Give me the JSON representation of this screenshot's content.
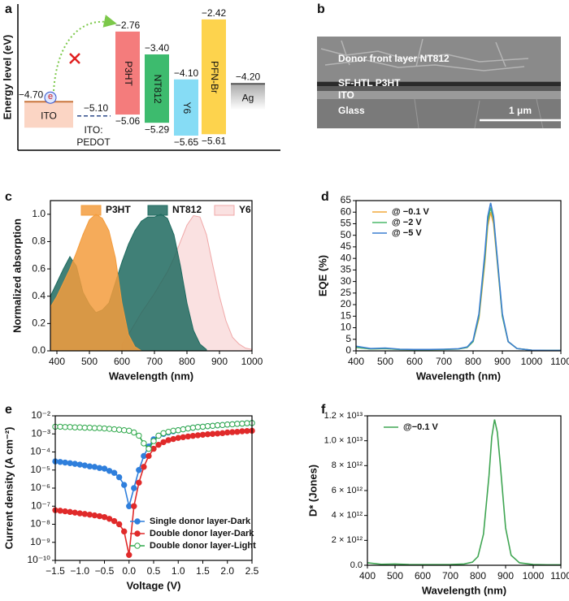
{
  "panel_labels": [
    "a",
    "b",
    "c",
    "d",
    "e",
    "f"
  ],
  "energy_diagram": {
    "y_label": "Energy level (eV)",
    "electron_label": "e",
    "pedot": {
      "lines": [
        "ITO:",
        "PEDOT"
      ],
      "level": {
        "value": -5.1,
        "label": "−5.10"
      }
    },
    "layers": [
      {
        "name": "ITO",
        "color": "#fbd5c4",
        "top": {
          "value": -4.7,
          "label": "−4.70"
        }
      },
      {
        "name": "P3HT",
        "color": "#f47c7c",
        "top": {
          "value": -2.76,
          "label": "−2.76"
        },
        "bottom": {
          "value": -5.06,
          "label": "−5.06"
        }
      },
      {
        "name": "NT812",
        "color": "#3dbb6e",
        "top": {
          "value": -3.4,
          "label": "−3.40"
        },
        "bottom": {
          "value": -5.29,
          "label": "−5.29"
        }
      },
      {
        "name": "Y6",
        "color": "#86dcf5",
        "top": {
          "value": -4.1,
          "label": "−4.10"
        },
        "bottom": {
          "value": -5.65,
          "label": "−5.65"
        }
      },
      {
        "name": "PFN-Br",
        "color": "#fdd34d",
        "top": {
          "value": -2.42,
          "label": "−2.42"
        },
        "bottom": {
          "value": -5.61,
          "label": "−5.61"
        }
      },
      {
        "name": "Ag",
        "color": "#bdbdbd",
        "top": {
          "value": -4.2,
          "label": "−4.20"
        }
      }
    ]
  },
  "sem_image": {
    "labels": [
      "Donor front layer NT812",
      "SF-HTL P3HT",
      "ITO",
      "Glass"
    ],
    "scale_bar": "1 μm"
  },
  "chart_data": [
    {
      "type": "area",
      "x_label": "Wavelength (nm)",
      "y_label": "Normalized absorption",
      "legend": "top",
      "x": [
        380,
        400,
        420,
        440,
        460,
        480,
        500,
        520,
        540,
        560,
        580,
        600,
        620,
        640,
        660,
        680,
        700,
        720,
        740,
        760,
        780,
        800,
        820,
        840,
        860,
        880,
        900,
        920,
        940,
        960,
        980,
        1000
      ],
      "xlim": [
        380,
        1000
      ],
      "xticks": [
        400,
        500,
        600,
        700,
        800,
        900,
        1000
      ],
      "ylim": [
        0,
        1.1
      ],
      "yticks": [
        {
          "value": 0,
          "label": "0.0"
        },
        0.2,
        0.4,
        0.6,
        0.8,
        {
          "value": 1,
          "label": "1.0"
        }
      ],
      "series": [
        {
          "name": "P3HT",
          "color": "#f39c3d",
          "values": [
            0.32,
            0.4,
            0.5,
            0.6,
            0.72,
            0.85,
            0.96,
            1.0,
            0.97,
            0.88,
            0.68,
            0.35,
            0.12,
            0.03,
            0,
            null,
            null,
            null,
            null,
            null,
            null,
            null,
            null,
            null,
            null,
            null,
            null,
            null,
            null,
            null,
            null,
            null
          ]
        },
        {
          "name": "NT812",
          "color": "#1e6a5f",
          "values": [
            0.4,
            0.5,
            0.6,
            0.69,
            0.62,
            0.43,
            0.34,
            0.28,
            0.3,
            0.35,
            0.5,
            0.65,
            0.78,
            0.88,
            0.95,
            0.98,
            0.98,
            1.0,
            0.97,
            0.85,
            0.62,
            0.35,
            0.15,
            0.05,
            0.01,
            null,
            null,
            null,
            null,
            null,
            null,
            null
          ]
        },
        {
          "name": "Y6",
          "color": "#f0a8a8",
          "values": [
            null,
            null,
            null,
            null,
            null,
            null,
            null,
            null,
            null,
            null,
            null,
            0.05,
            0.12,
            0.2,
            0.28,
            0.35,
            0.42,
            0.5,
            0.58,
            0.68,
            0.8,
            0.92,
            0.99,
            0.98,
            0.85,
            0.62,
            0.4,
            0.22,
            0.1,
            0.05,
            0.02,
            0.01
          ]
        }
      ]
    },
    {
      "type": "line",
      "x_label": "Wavelength (nm)",
      "y_label": "EQE (%)",
      "legend": "upper left",
      "x": [
        400,
        450,
        500,
        550,
        600,
        650,
        700,
        750,
        780,
        800,
        820,
        840,
        850,
        860,
        870,
        880,
        900,
        920,
        950,
        1000,
        1050,
        1100
      ],
      "xlim": [
        400,
        1100
      ],
      "xticks": [
        400,
        500,
        600,
        700,
        800,
        900,
        1000,
        1100
      ],
      "ylim": [
        0,
        65
      ],
      "yticks": [
        0,
        5,
        10,
        15,
        20,
        25,
        30,
        35,
        40,
        45,
        50,
        55,
        60,
        65
      ],
      "series": [
        {
          "name": "@ −0.1 V",
          "color": "#f2a93b",
          "values": [
            1.5,
            0.8,
            1,
            0.6,
            0.5,
            0.5,
            0.6,
            0.8,
            1.5,
            4,
            14,
            38,
            54,
            60,
            55,
            42,
            15,
            4,
            1,
            0.3,
            0.2,
            0.2
          ]
        },
        {
          "name": "@ −2 V",
          "color": "#4cb86a",
          "values": [
            1.5,
            0.8,
            1,
            0.6,
            0.5,
            0.5,
            0.6,
            0.8,
            1.5,
            4,
            15,
            40,
            56,
            62,
            57,
            43,
            15,
            4,
            1,
            0.3,
            0.2,
            0.2
          ]
        },
        {
          "name": "@ −5 V",
          "color": "#3b7fd0",
          "values": [
            2,
            1,
            1.2,
            0.7,
            0.6,
            0.6,
            0.7,
            0.9,
            1.7,
            4.5,
            16,
            42,
            58,
            64,
            58,
            44,
            16,
            4,
            1,
            0.3,
            0.2,
            0.2
          ]
        }
      ]
    },
    {
      "type": "line",
      "x_label": "Voltage (V)",
      "y_label": "Current density (A cm⁻²)",
      "legend": "lower left",
      "log_y": true,
      "x": [
        -1.5,
        -1.4,
        -1.3,
        -1.2,
        -1.1,
        -1,
        -0.9,
        -0.8,
        -0.7,
        -0.6,
        -0.5,
        -0.4,
        -0.3,
        -0.2,
        -0.1,
        0,
        0.1,
        0.2,
        0.3,
        0.4,
        0.5,
        0.6,
        0.7,
        0.8,
        0.9,
        1,
        1.1,
        1.2,
        1.3,
        1.4,
        1.5,
        1.6,
        1.7,
        1.8,
        1.9,
        2,
        2.1,
        2.2,
        2.3,
        2.4,
        2.5
      ],
      "xlim": [
        -1.5,
        2.5
      ],
      "xticks": [
        {
          "value": -1.5,
          "label": "−1.5"
        },
        {
          "value": -1,
          "label": "−1.0"
        },
        {
          "value": -0.5,
          "label": "−0.5"
        },
        {
          "value": 0,
          "label": "0.0"
        },
        0.5,
        {
          "value": 1,
          "label": "1.0"
        },
        1.5,
        {
          "value": 2,
          "label": "2.0"
        },
        2.5
      ],
      "ylim": [
        1e-10,
        0.01
      ],
      "yticks": [
        {
          "value": 0.01,
          "label": "10⁻²"
        },
        {
          "value": 0.001,
          "label": "10⁻³"
        },
        {
          "value": 0.0001,
          "label": "10⁻⁴"
        },
        {
          "value": 1e-05,
          "label": "10⁻⁵"
        },
        {
          "value": 1e-06,
          "label": "10⁻⁶"
        },
        {
          "value": 1e-07,
          "label": "10⁻⁷"
        },
        {
          "value": 1e-08,
          "label": "10⁻⁸"
        },
        {
          "value": 1e-09,
          "label": "10⁻⁹"
        },
        {
          "value": 1e-10,
          "label": "10⁻¹⁰"
        }
      ],
      "series": [
        {
          "name": "Single donor layer-Dark",
          "color": "#2f7fdc",
          "marker": "filled",
          "values": [
            3e-05,
            2.8e-05,
            2.6e-05,
            2.4e-05,
            2.2e-05,
            2e-05,
            1.8e-05,
            1.6e-05,
            1.5e-05,
            1.3e-05,
            1.2e-05,
            9e-06,
            7e-06,
            4e-06,
            1.5e-06,
            1e-07,
            1e-06,
            1e-05,
            6e-05,
            0.0002,
            0.0005,
            0.0008,
            0.001,
            0.0012,
            0.0014,
            0.0016,
            0.0018,
            0.002,
            0.0022,
            0.0024,
            0.0025,
            0.0027,
            0.0028,
            0.003,
            0.0031,
            0.0033,
            0.0034,
            0.0036,
            0.0037,
            0.0039,
            0.004
          ]
        },
        {
          "name": "Double donor layer-Dark",
          "color": "#e02a2a",
          "marker": "filled",
          "values": [
            6e-08,
            5.6e-08,
            5.2e-08,
            4.8e-08,
            4.4e-08,
            4e-08,
            3.7e-08,
            3.4e-08,
            3.1e-08,
            2.8e-08,
            2.5e-08,
            2e-08,
            1.5e-08,
            1e-08,
            4e-09,
            2e-10,
            1e-07,
            2e-06,
            1.5e-05,
            6e-05,
            0.00015,
            0.00025,
            0.00035,
            0.00045,
            0.00052,
            0.0006,
            0.00066,
            0.00072,
            0.00078,
            0.00084,
            0.0009,
            0.00096,
            0.001,
            0.00105,
            0.0011,
            0.0012,
            0.00125,
            0.0013,
            0.0014,
            0.00145,
            0.0015
          ]
        },
        {
          "name": "Double donor layer-Light",
          "color": "#2ea84a",
          "marker": "open",
          "values": [
            0.0025,
            0.0025,
            0.0024,
            0.0024,
            0.0023,
            0.0023,
            0.0022,
            0.0022,
            0.0021,
            0.0021,
            0.002,
            0.0019,
            0.0018,
            0.0017,
            0.0016,
            0.0015,
            0.0012,
            0.0008,
            0.0003,
            0.00015,
            0.0004,
            0.0008,
            0.0011,
            0.0013,
            0.0015,
            0.0016,
            0.0018,
            0.002,
            0.0022,
            0.0024,
            0.0025,
            0.0027,
            0.0028,
            0.003,
            0.0031,
            0.0033,
            0.0034,
            0.0036,
            0.0037,
            0.0039,
            0.004
          ]
        }
      ]
    },
    {
      "type": "line",
      "x_label": "Wavelength (nm)",
      "y_label": "D* (Jones)",
      "legend": "upper left",
      "x": [
        400,
        450,
        500,
        550,
        600,
        650,
        700,
        750,
        780,
        800,
        820,
        840,
        850,
        860,
        870,
        880,
        900,
        920,
        950,
        1000,
        1050,
        1100
      ],
      "xlim": [
        400,
        1100
      ],
      "xticks": [
        400,
        500,
        600,
        700,
        800,
        900,
        1000,
        1100
      ],
      "ylim": [
        0,
        12000000000000.0
      ],
      "yticks": [
        {
          "value": 0,
          "label": "0.0"
        },
        {
          "value": 2000000000000.0,
          "label": "2 × 10¹²"
        },
        {
          "value": 4000000000000.0,
          "label": "4 × 10¹²"
        },
        {
          "value": 6000000000000.0,
          "label": "6 × 10¹²"
        },
        {
          "value": 8000000000000.0,
          "label": "8 × 10¹²"
        },
        {
          "value": 10000000000000.0,
          "label": "1.0 × 10¹³"
        },
        {
          "value": 12000000000000.0,
          "label": "1.2 × 10¹³"
        }
      ],
      "series": [
        {
          "name": "@−0.1 V",
          "color": "#3fa552",
          "values": [
            200000000000.0,
            80000000000.0,
            100000000000.0,
            60000000000.0,
            50000000000.0,
            50000000000.0,
            60000000000.0,
            100000000000.0,
            250000000000.0,
            700000000000.0,
            2500000000000.0,
            7200000000000.0,
            10300000000000.0,
            11700000000000.0,
            10700000000000.0,
            8300000000000.0,
            3000000000000.0,
            800000000000.0,
            200000000000.0,
            60000000000.0,
            40000000000.0,
            40000000000.0
          ]
        }
      ]
    }
  ]
}
